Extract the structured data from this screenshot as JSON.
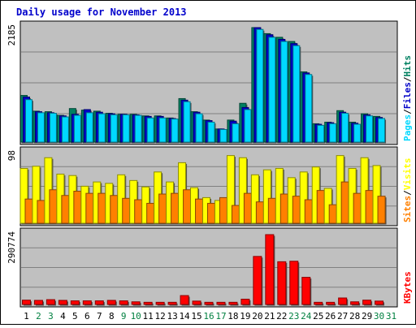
{
  "chart_data": [
    {
      "type": "bar",
      "title": "Daily usage for November 2013",
      "categories": [
        "1",
        "2",
        "3",
        "4",
        "5",
        "6",
        "7",
        "8",
        "9",
        "10",
        "11",
        "12",
        "13",
        "14",
        "15",
        "16",
        "17",
        "18",
        "19",
        "20",
        "21",
        "22",
        "23",
        "24",
        "25",
        "26",
        "27",
        "28",
        "29",
        "30",
        "31"
      ],
      "weekend_days": [
        "2",
        "3",
        "9",
        "10",
        "16",
        "17",
        "23",
        "24",
        "30",
        "31"
      ],
      "colors": {
        "title": "#0000cc",
        "plot_background": "#c0c0c0",
        "weekday_label": "#000000",
        "weekend_label": "#008040",
        "pages": "#00d8ff",
        "files": "#0000c8",
        "hits": "#008060",
        "visits": "#ffff00",
        "sites": "#ff8000",
        "kbytes": "#ff0000"
      },
      "panels": [
        {
          "name": "hits-files-pages",
          "ymax_label": "2185",
          "ymax": 2185,
          "side_labels": [
            "Pages",
            "Files",
            "Hits"
          ],
          "series": [
            {
              "name": "Hits",
              "color": "#008060",
              "values": [
                890,
                590,
                580,
                510,
                640,
                610,
                590,
                550,
                530,
                530,
                500,
                500,
                460,
                830,
                580,
                420,
                250,
                420,
                740,
                2185,
                2070,
                2000,
                1920,
                1340,
                350,
                380,
                600,
                380,
                540,
                490
              ]
            },
            {
              "name": "Files",
              "color": "#0000c8",
              "values": [
                860,
                580,
                560,
                500,
                530,
                620,
                570,
                540,
                530,
                520,
                490,
                490,
                450,
                800,
                570,
                410,
                250,
                400,
                660,
                2185,
                2050,
                1960,
                1880,
                1320,
                340,
                370,
                570,
                360,
                520,
                470
              ]
            },
            {
              "name": "Pages",
              "color": "#00d8ff",
              "values": [
                810,
                560,
                550,
                480,
                510,
                560,
                540,
                520,
                520,
                510,
                460,
                460,
                440,
                770,
                540,
                380,
                240,
                350,
                620,
                2150,
                2000,
                1920,
                1840,
                1290,
                320,
                350,
                550,
                340,
                500,
                450
              ]
            }
          ]
        },
        {
          "name": "visits-sites",
          "ymax_label": "98",
          "ymax": 98,
          "side_labels": [
            "Sites",
            "Visits"
          ],
          "series": [
            {
              "name": "Visits",
              "color": "#ffff00",
              "values": [
                77,
                80,
                92,
                69,
                67,
                52,
                58,
                56,
                68,
                60,
                51,
                72,
                58,
                85,
                50,
                36,
                32,
                95,
                92,
                68,
                75,
                77,
                64,
                72,
                79,
                49,
                95,
                77,
                92,
                81
              ]
            },
            {
              "name": "Sites",
              "color": "#ff8000",
              "values": [
                34,
                32,
                47,
                39,
                45,
                42,
                42,
                39,
                35,
                33,
                28,
                41,
                42,
                47,
                34,
                28,
                36,
                25,
                42,
                30,
                35,
                41,
                38,
                33,
                46,
                26,
                58,
                42,
                46,
                38
              ]
            }
          ]
        },
        {
          "name": "kbytes",
          "ymax_label": "290774",
          "ymax": 290774,
          "side_labels": [
            "KBytes"
          ],
          "series": [
            {
              "name": "KBytes",
              "color": "#ff0000",
              "values": [
                18000,
                17000,
                20000,
                17000,
                15000,
                15000,
                15000,
                17000,
                15000,
                11000,
                9000,
                9000,
                9000,
                37000,
                14000,
                9000,
                9000,
                9000,
                22000,
                200000,
                290774,
                178000,
                180000,
                113000,
                9000,
                9000,
                27000,
                11000,
                18000,
                14000
              ]
            }
          ]
        }
      ]
    }
  ]
}
